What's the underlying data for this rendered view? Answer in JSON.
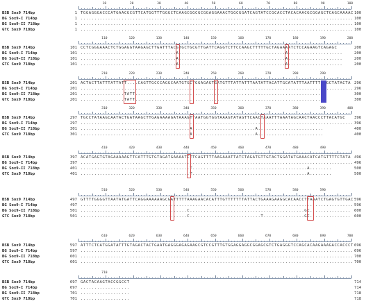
{
  "sequences": [
    "BSB Sox9 714bp",
    "BG Sox9-I 714bp",
    "BG Sox9-II 718bp",
    "GTC Sox9 718bp"
  ],
  "blocks": [
    {
      "ticks": [
        10,
        20,
        30,
        40,
        50,
        60,
        70,
        80,
        90,
        100
      ],
      "rows": [
        {
          "start": "1",
          "seq": "TGGAGGGACCCATGAACGCGTTCATGGTTTGGGCTCAAGCGGCGCGGAGGAAACTGGCGGATCAGTATCCGCACCTACACAACGCGGAGCTCAGCAAAAC",
          "end": "100"
        },
        {
          "start": "1",
          "seq": "....................................................................................................",
          "end": "100"
        },
        {
          "start": "1",
          "seq": "....................................................................................................",
          "end": "100"
        },
        {
          "start": "1",
          "seq": "....................................................................................................",
          "end": "100"
        }
      ],
      "marks": []
    },
    {
      "ticks": [
        110,
        120,
        130,
        140,
        150,
        160,
        170,
        180,
        190,
        200
      ],
      "rows": [
        {
          "start": "101",
          "seq": "CCTCGGGAAACTCTGGAGGTAAGAGCTTGATTTACGTGCTGCGTTGATTCAGGTCTTCCAAGCTTTTTGCTAGAAAATCTCCAGAAGTCAGAGC",
          "end": "200"
        },
        {
          "start": "101",
          "seq": "...................................A.......................................A....................",
          "end": "200"
        },
        {
          "start": "101",
          "seq": "...................................A.......................................A....................",
          "end": "200"
        },
        {
          "start": "101",
          "seq": "...................................A.......................................A....................",
          "end": "200"
        }
      ],
      "marks": [
        {
          "col": 35,
          "w": 1
        },
        {
          "col": 75,
          "w": 1
        }
      ]
    },
    {
      "ticks": [
        210,
        220,
        230,
        240,
        250,
        260,
        270,
        280,
        290
      ],
      "rows": [
        {
          "start": "201",
          "seq": "ACTACTTATTTATTATT....CAGTTGCCCAGGCAATGTGCTGGAGAGTGATGTTTATTATTTAATATTACATTGCATATTTAATTTTTTGCTATACTA",
          "end": "296"
        },
        {
          "start": "201",
          "seq": "....................................................................................................",
          "end": "296"
        },
        {
          "start": "201",
          "seq": "................TATT......................................................................",
          "end": "300"
        },
        {
          "start": "201",
          "seq": "................TATT......................................................................",
          "end": "300"
        }
      ],
      "marks": [
        {
          "col": 16,
          "w": 4
        },
        {
          "col": 40,
          "w": 1
        },
        {
          "col": 49,
          "w": 1
        }
      ],
      "highlights": [
        {
          "col": 88,
          "w": 2
        }
      ]
    },
    {
      "ticks": [
        310,
        320,
        330,
        340,
        350,
        360,
        370,
        380,
        390,
        400
      ],
      "rows": [
        {
          "start": "297",
          "seq": "TGCCTATAAGCAATACTGATAAGCTTGAGAAAAGATAAAGTTAATGGTGGTAAAGTATAGTTCAACTAAATTTAAATAGCAACTAACCCTTACATGC",
          "end": "396"
        },
        {
          "start": "297",
          "seq": "....................................................................................................",
          "end": "396"
        },
        {
          "start": "301",
          "seq": "........................................A.......................A........................",
          "end": "400"
        },
        {
          "start": "301",
          "seq": "........................................A.......................A........................",
          "end": "400"
        }
      ],
      "marks": [
        {
          "col": 40,
          "w": 1
        },
        {
          "col": 66,
          "w": 1
        }
      ]
    },
    {
      "ticks": [
        410,
        420,
        430,
        440,
        450,
        460,
        470,
        480,
        490
      ],
      "rows": [
        {
          "start": "397",
          "seq": "ACATGAGTGTAGAAAAAGTTCATTTGTGTAGATGAAAATCTTCAGTTTTAAGAAATTATCTAGATGTTGTACTGGATATGAAACATCATGTTTTCTATA",
          "end": "496"
        },
        {
          "start": "397",
          "seq": "....................................................................................................",
          "end": "496"
        },
        {
          "start": "401",
          "seq": "........................................T..........................................A........",
          "end": "500"
        },
        {
          "start": "401",
          "seq": "........................................T..........................................A........",
          "end": "500"
        }
      ],
      "marks": [
        {
          "col": 39,
          "w": 1
        }
      ]
    },
    {
      "ticks": [
        510,
        520,
        530,
        540,
        550,
        560,
        570,
        580,
        590
      ],
      "rows": [
        {
          "start": "497",
          "seq": "GTTTTGGGGTTAATATGATTCAGGAAAAAAGCGATTTTTAAAGAACACATTTGTTTTTTTATTACTGAAAGAAGGCACAACCTTAAATCTGAGTGTTGAC",
          "end": "596"
        },
        {
          "start": "497",
          "seq": "....................................................................................................",
          "end": "596"
        },
        {
          "start": "501",
          "seq": ".......................................C..........................................GC...............",
          "end": "600"
        },
        {
          "start": "501",
          "seq": ".......................................C..........................T...............GC...............",
          "end": "600"
        }
      ],
      "marks": [
        {
          "col": 33,
          "w": 1
        },
        {
          "col": 83,
          "w": 2
        }
      ]
    },
    {
      "ticks": [
        610,
        620,
        630,
        640,
        650,
        660,
        670,
        680,
        690,
        700
      ],
      "rows": [
        {
          "start": "597",
          "seq": "ATTTCTCATGGATATTTGTAGACTACTGAATGAGGGAGAGAAGCGTCCGTTTGTGGAGGAGGCGGAGCGTCTGAGGGTCCAGCACAAGAAAGACCACCCT",
          "end": "696"
        },
        {
          "start": "597",
          "seq": "....................................................................................................",
          "end": "696"
        },
        {
          "start": "601",
          "seq": "....................................................................................................",
          "end": "700"
        },
        {
          "start": "601",
          "seq": "....................................................................................................",
          "end": "700"
        }
      ],
      "marks": []
    },
    {
      "ticks": [
        710
      ],
      "rows": [
        {
          "start": "697",
          "seq": "GACTACAAGTACCGGCCT",
          "end": "714"
        },
        {
          "start": "697",
          "seq": "..................",
          "end": "714"
        },
        {
          "start": "701",
          "seq": "..................",
          "end": "718"
        },
        {
          "start": "701",
          "seq": "..................",
          "end": "718"
        }
      ],
      "marks": []
    }
  ],
  "colors": {
    "mark": "#d24c4c",
    "highlight": "#4a48c8"
  }
}
